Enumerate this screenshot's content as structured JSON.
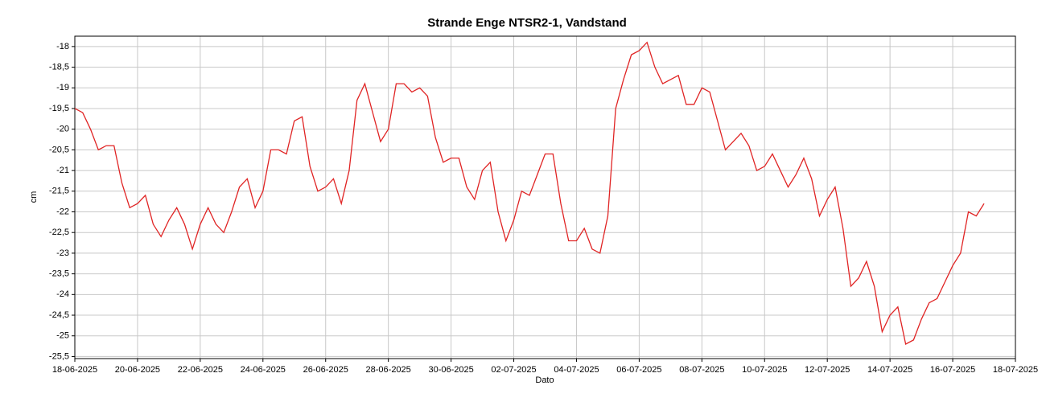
{
  "chart_data": {
    "type": "line",
    "title": "Strande Enge NTSR2-1, Vandstand",
    "xlabel": "Dato",
    "ylabel": "cm",
    "x": [
      "2025-06-18T00:00",
      "2025-06-18T06:00",
      "2025-06-18T12:00",
      "2025-06-18T18:00",
      "2025-06-19T00:00",
      "2025-06-19T06:00",
      "2025-06-19T12:00",
      "2025-06-19T18:00",
      "2025-06-20T00:00",
      "2025-06-20T06:00",
      "2025-06-20T12:00",
      "2025-06-20T18:00",
      "2025-06-21T00:00",
      "2025-06-21T06:00",
      "2025-06-21T12:00",
      "2025-06-21T18:00",
      "2025-06-22T00:00",
      "2025-06-22T06:00",
      "2025-06-22T12:00",
      "2025-06-22T18:00",
      "2025-06-23T00:00",
      "2025-06-23T06:00",
      "2025-06-23T12:00",
      "2025-06-23T18:00",
      "2025-06-24T00:00",
      "2025-06-24T06:00",
      "2025-06-24T12:00",
      "2025-06-24T18:00",
      "2025-06-25T00:00",
      "2025-06-25T06:00",
      "2025-06-25T12:00",
      "2025-06-25T18:00",
      "2025-06-26T00:00",
      "2025-06-26T06:00",
      "2025-06-26T12:00",
      "2025-06-26T18:00",
      "2025-06-27T00:00",
      "2025-06-27T06:00",
      "2025-06-27T12:00",
      "2025-06-27T18:00",
      "2025-06-28T00:00",
      "2025-06-28T06:00",
      "2025-06-28T12:00",
      "2025-06-28T18:00",
      "2025-06-29T00:00",
      "2025-06-29T06:00",
      "2025-06-29T12:00",
      "2025-06-29T18:00",
      "2025-06-30T00:00",
      "2025-06-30T06:00",
      "2025-06-30T12:00",
      "2025-06-30T18:00",
      "2025-07-01T00:00",
      "2025-07-01T06:00",
      "2025-07-01T12:00",
      "2025-07-01T18:00",
      "2025-07-02T00:00",
      "2025-07-02T06:00",
      "2025-07-02T12:00",
      "2025-07-02T18:00",
      "2025-07-03T00:00",
      "2025-07-03T06:00",
      "2025-07-03T12:00",
      "2025-07-03T18:00",
      "2025-07-04T00:00",
      "2025-07-04T06:00",
      "2025-07-04T12:00",
      "2025-07-04T18:00",
      "2025-07-05T00:00",
      "2025-07-05T06:00",
      "2025-07-05T12:00",
      "2025-07-05T18:00",
      "2025-07-06T00:00",
      "2025-07-06T06:00",
      "2025-07-06T12:00",
      "2025-07-06T18:00",
      "2025-07-07T00:00",
      "2025-07-07T06:00",
      "2025-07-07T12:00",
      "2025-07-07T18:00",
      "2025-07-08T00:00",
      "2025-07-08T06:00",
      "2025-07-08T12:00",
      "2025-07-08T18:00",
      "2025-07-09T00:00",
      "2025-07-09T06:00",
      "2025-07-09T12:00",
      "2025-07-09T18:00",
      "2025-07-10T00:00",
      "2025-07-10T06:00",
      "2025-07-10T12:00",
      "2025-07-10T18:00",
      "2025-07-11T00:00",
      "2025-07-11T06:00",
      "2025-07-11T12:00",
      "2025-07-11T18:00",
      "2025-07-12T00:00",
      "2025-07-12T06:00",
      "2025-07-12T12:00",
      "2025-07-12T18:00",
      "2025-07-13T00:00",
      "2025-07-13T06:00",
      "2025-07-13T12:00",
      "2025-07-13T18:00",
      "2025-07-14T00:00",
      "2025-07-14T06:00",
      "2025-07-14T12:00",
      "2025-07-14T18:00",
      "2025-07-15T00:00",
      "2025-07-15T06:00",
      "2025-07-15T12:00",
      "2025-07-15T18:00",
      "2025-07-16T00:00",
      "2025-07-16T06:00",
      "2025-07-16T12:00",
      "2025-07-16T18:00",
      "2025-07-17T00:00"
    ],
    "series": [
      {
        "name": "Vandstand",
        "color": "#e02424",
        "values": [
          -19.5,
          -19.6,
          -20.0,
          -20.5,
          -20.4,
          -20.4,
          -21.3,
          -21.9,
          -21.8,
          -21.6,
          -22.3,
          -22.6,
          -22.2,
          -21.9,
          -22.3,
          -22.9,
          -22.3,
          -21.9,
          -22.3,
          -22.5,
          -22.0,
          -21.4,
          -21.2,
          -21.9,
          -21.5,
          -20.5,
          -20.5,
          -20.6,
          -19.8,
          -19.7,
          -20.9,
          -21.5,
          -21.4,
          -21.2,
          -21.8,
          -21.0,
          -19.3,
          -18.9,
          -19.6,
          -20.3,
          -20.0,
          -18.9,
          -18.9,
          -19.1,
          -19.0,
          -19.2,
          -20.2,
          -20.8,
          -20.7,
          -20.7,
          -21.4,
          -21.7,
          -21.0,
          -20.8,
          -22.0,
          -22.7,
          -22.2,
          -21.5,
          -21.6,
          -21.1,
          -20.6,
          -20.6,
          -21.8,
          -22.7,
          -22.7,
          -22.4,
          -22.9,
          -23.0,
          -22.1,
          -19.5,
          -18.8,
          -18.2,
          -18.1,
          -17.9,
          -18.5,
          -18.9,
          -18.8,
          -18.7,
          -19.4,
          -19.4,
          -19.0,
          -19.1,
          -19.8,
          -20.5,
          -20.3,
          -20.1,
          -20.4,
          -21.0,
          -20.9,
          -20.6,
          -21.0,
          -21.4,
          -21.1,
          -20.7,
          -21.2,
          -22.1,
          -21.7,
          -21.4,
          -22.4,
          -23.8,
          -23.6,
          -23.2,
          -23.8,
          -24.9,
          -24.5,
          -24.3,
          -25.2,
          -25.1,
          -24.6,
          -24.2,
          -24.1,
          -23.7,
          -23.3,
          -23.0,
          -22.0,
          -22.1,
          -21.8
        ]
      }
    ],
    "xlim": [
      "2025-06-18T00:00",
      "2025-07-18T00:00"
    ],
    "xticks": [
      {
        "value": "2025-06-18T00:00",
        "label": "18-06-2025"
      },
      {
        "value": "2025-06-20T00:00",
        "label": "20-06-2025"
      },
      {
        "value": "2025-06-22T00:00",
        "label": "22-06-2025"
      },
      {
        "value": "2025-06-24T00:00",
        "label": "24-06-2025"
      },
      {
        "value": "2025-06-26T00:00",
        "label": "26-06-2025"
      },
      {
        "value": "2025-06-28T00:00",
        "label": "28-06-2025"
      },
      {
        "value": "2025-06-30T00:00",
        "label": "30-06-2025"
      },
      {
        "value": "2025-07-02T00:00",
        "label": "02-07-2025"
      },
      {
        "value": "2025-07-04T00:00",
        "label": "04-07-2025"
      },
      {
        "value": "2025-07-06T00:00",
        "label": "06-07-2025"
      },
      {
        "value": "2025-07-08T00:00",
        "label": "08-07-2025"
      },
      {
        "value": "2025-07-10T00:00",
        "label": "10-07-2025"
      },
      {
        "value": "2025-07-12T00:00",
        "label": "12-07-2025"
      },
      {
        "value": "2025-07-14T00:00",
        "label": "14-07-2025"
      },
      {
        "value": "2025-07-16T00:00",
        "label": "16-07-2025"
      },
      {
        "value": "2025-07-18T00:00",
        "label": "18-07-2025"
      }
    ],
    "ylim": [
      -25.55,
      -17.75
    ],
    "yticks": [
      -18,
      {
        "value": -18.5,
        "label": "-18,5"
      },
      -19,
      {
        "value": -19.5,
        "label": "-19,5"
      },
      -20,
      {
        "value": -20.5,
        "label": "-20,5"
      },
      -21,
      {
        "value": -21.5,
        "label": "-21,5"
      },
      -22,
      {
        "value": -22.5,
        "label": "-22,5"
      },
      -23,
      {
        "value": -23.5,
        "label": "-23,5"
      },
      -24,
      {
        "value": -24.5,
        "label": "-24,5"
      },
      -25,
      {
        "value": -25.5,
        "label": "-25,5"
      }
    ],
    "grid": true
  }
}
